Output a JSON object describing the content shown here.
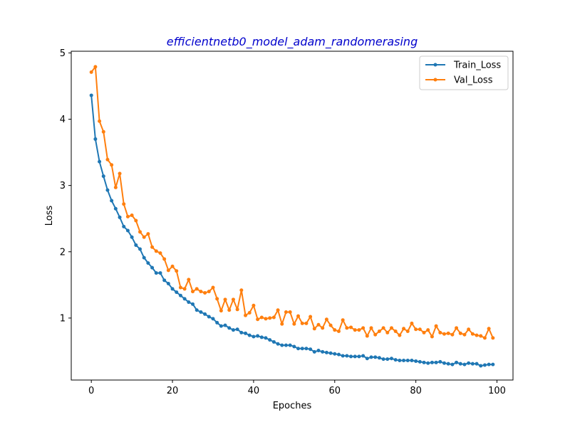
{
  "chart_data": {
    "type": "line",
    "title": "efficientnetb0_model_adam_randomerasing",
    "xlabel": "Epoches",
    "ylabel": "Loss",
    "xlim": [
      -4.95,
      103.95
    ],
    "ylim": [
      0.065,
      5.025
    ],
    "xticks": [
      0,
      20,
      40,
      60,
      80,
      100
    ],
    "yticks": [
      1,
      2,
      3,
      4,
      5
    ],
    "legend_position": "upper-right",
    "grid": false,
    "series": [
      {
        "name": "Train_Loss",
        "color": "#1f77b4",
        "x": [
          0,
          1,
          2,
          3,
          4,
          5,
          6,
          7,
          8,
          9,
          10,
          11,
          12,
          13,
          14,
          15,
          16,
          17,
          18,
          19,
          20,
          21,
          22,
          23,
          24,
          25,
          26,
          27,
          28,
          29,
          30,
          31,
          32,
          33,
          34,
          35,
          36,
          37,
          38,
          39,
          40,
          41,
          42,
          43,
          44,
          45,
          46,
          47,
          48,
          49,
          50,
          51,
          52,
          53,
          54,
          55,
          56,
          57,
          58,
          59,
          60,
          61,
          62,
          63,
          64,
          65,
          66,
          67,
          68,
          69,
          70,
          71,
          72,
          73,
          74,
          75,
          76,
          77,
          78,
          79,
          80,
          81,
          82,
          83,
          84,
          85,
          86,
          87,
          88,
          89,
          90,
          91,
          92,
          93,
          94,
          95,
          96,
          97,
          98,
          99
        ],
        "values": [
          4.36,
          3.7,
          3.36,
          3.14,
          2.93,
          2.77,
          2.65,
          2.52,
          2.38,
          2.32,
          2.22,
          2.1,
          2.04,
          1.91,
          1.83,
          1.76,
          1.68,
          1.68,
          1.57,
          1.52,
          1.44,
          1.39,
          1.34,
          1.29,
          1.24,
          1.21,
          1.12,
          1.09,
          1.06,
          1.02,
          0.99,
          0.93,
          0.88,
          0.89,
          0.85,
          0.82,
          0.83,
          0.78,
          0.77,
          0.74,
          0.72,
          0.73,
          0.71,
          0.7,
          0.67,
          0.64,
          0.61,
          0.59,
          0.59,
          0.59,
          0.57,
          0.54,
          0.54,
          0.54,
          0.53,
          0.49,
          0.51,
          0.49,
          0.48,
          0.47,
          0.46,
          0.45,
          0.43,
          0.43,
          0.42,
          0.42,
          0.42,
          0.43,
          0.39,
          0.41,
          0.41,
          0.4,
          0.38,
          0.38,
          0.39,
          0.37,
          0.36,
          0.36,
          0.36,
          0.36,
          0.35,
          0.34,
          0.33,
          0.32,
          0.33,
          0.33,
          0.34,
          0.32,
          0.31,
          0.3,
          0.33,
          0.31,
          0.3,
          0.32,
          0.31,
          0.31,
          0.28,
          0.29,
          0.3,
          0.3
        ]
      },
      {
        "name": "Val_Loss",
        "color": "#ff7f0e",
        "x": [
          0,
          1,
          2,
          3,
          4,
          5,
          6,
          7,
          8,
          9,
          10,
          11,
          12,
          13,
          14,
          15,
          16,
          17,
          18,
          19,
          20,
          21,
          22,
          23,
          24,
          25,
          26,
          27,
          28,
          29,
          30,
          31,
          32,
          33,
          34,
          35,
          36,
          37,
          38,
          39,
          40,
          41,
          42,
          43,
          44,
          45,
          46,
          47,
          48,
          49,
          50,
          51,
          52,
          53,
          54,
          55,
          56,
          57,
          58,
          59,
          60,
          61,
          62,
          63,
          64,
          65,
          66,
          67,
          68,
          69,
          70,
          71,
          72,
          73,
          74,
          75,
          76,
          77,
          78,
          79,
          80,
          81,
          82,
          83,
          84,
          85,
          86,
          87,
          88,
          89,
          90,
          91,
          92,
          93,
          94,
          95,
          96,
          97,
          98,
          99
        ],
        "values": [
          4.71,
          4.79,
          3.97,
          3.81,
          3.39,
          3.31,
          2.97,
          3.18,
          2.72,
          2.53,
          2.55,
          2.47,
          2.3,
          2.22,
          2.27,
          2.07,
          2.01,
          1.98,
          1.89,
          1.72,
          1.78,
          1.71,
          1.46,
          1.44,
          1.58,
          1.4,
          1.44,
          1.4,
          1.38,
          1.4,
          1.46,
          1.29,
          1.11,
          1.28,
          1.12,
          1.28,
          1.13,
          1.42,
          1.04,
          1.08,
          1.19,
          0.98,
          1.01,
          0.99,
          1.0,
          1.01,
          1.12,
          0.91,
          1.09,
          1.09,
          0.91,
          1.03,
          0.92,
          0.92,
          1.02,
          0.84,
          0.9,
          0.85,
          0.98,
          0.89,
          0.82,
          0.8,
          0.97,
          0.85,
          0.86,
          0.82,
          0.82,
          0.85,
          0.73,
          0.85,
          0.75,
          0.8,
          0.85,
          0.78,
          0.85,
          0.8,
          0.74,
          0.84,
          0.8,
          0.92,
          0.83,
          0.83,
          0.78,
          0.82,
          0.72,
          0.88,
          0.78,
          0.76,
          0.77,
          0.75,
          0.85,
          0.77,
          0.75,
          0.83,
          0.76,
          0.74,
          0.73,
          0.7,
          0.84,
          0.7
        ]
      }
    ]
  }
}
